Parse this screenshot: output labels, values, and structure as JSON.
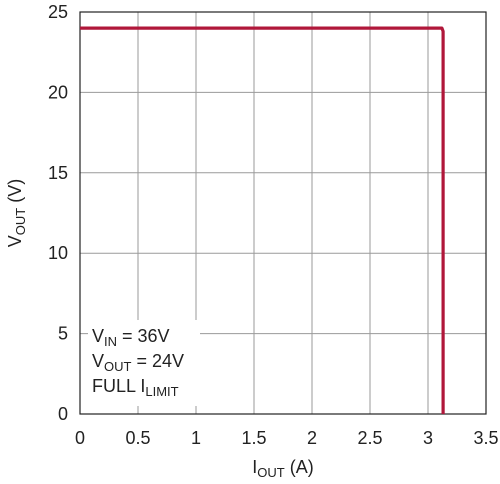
{
  "chart_data": {
    "type": "line",
    "xlabel_main": "I",
    "xlabel_sub": "OUT",
    "xlabel_unit": " (A)",
    "ylabel_main": "V",
    "ylabel_sub": "OUT",
    "ylabel_unit": " (V)",
    "xlim": [
      0,
      3.5
    ],
    "ylim": [
      0,
      25
    ],
    "xticks": [
      "0",
      "0.5",
      "1",
      "1.5",
      "2",
      "2.5",
      "3",
      "3.5"
    ],
    "yticks": [
      "0",
      "5",
      "10",
      "15",
      "20",
      "25"
    ],
    "grid": true,
    "line_color": "#b0173a",
    "series": [
      {
        "x": [
          0,
          0.5,
          1.0,
          1.5,
          2.0,
          2.5,
          3.0,
          3.12,
          3.13,
          3.13
        ],
        "y": [
          24,
          24,
          24,
          24,
          24,
          24,
          24,
          24,
          23.8,
          0
        ]
      }
    ],
    "annotations": [
      {
        "main": "V",
        "sub": "IN",
        "rest": " = 36V"
      },
      {
        "main": "V",
        "sub": "OUT",
        "rest": " = 24V"
      },
      {
        "main": "FULL I",
        "sub": "LIMIT",
        "rest": ""
      }
    ]
  }
}
